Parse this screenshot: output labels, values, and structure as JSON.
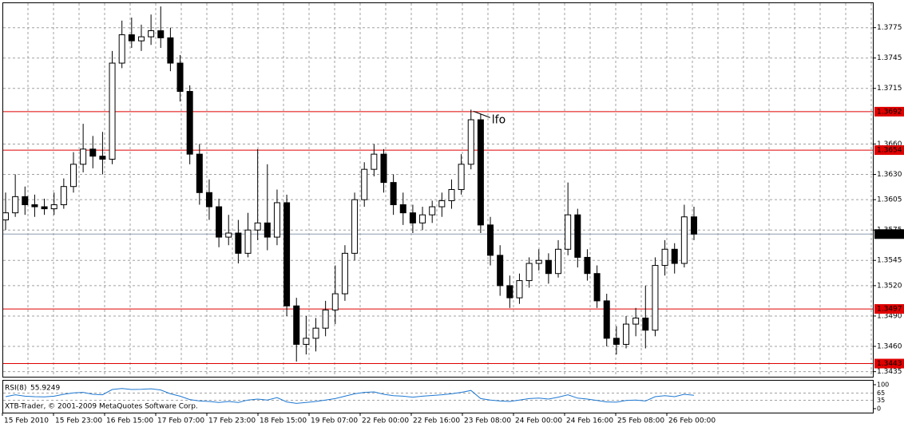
{
  "chart_data": {
    "type": "candlestick",
    "candles": [
      [
        1.3585,
        1.3612,
        1.3575,
        1.3592
      ],
      [
        1.3592,
        1.363,
        1.3588,
        1.3608
      ],
      [
        1.3608,
        1.3618,
        1.359,
        1.36
      ],
      [
        1.36,
        1.361,
        1.3588,
        1.3598
      ],
      [
        1.3598,
        1.3606,
        1.359,
        1.3596
      ],
      [
        1.3596,
        1.3612,
        1.359,
        1.36
      ],
      [
        1.36,
        1.3626,
        1.3596,
        1.3618
      ],
      [
        1.3618,
        1.3652,
        1.3612,
        1.364
      ],
      [
        1.364,
        1.368,
        1.3632,
        1.3655
      ],
      [
        1.3655,
        1.3668,
        1.3636,
        1.3648
      ],
      [
        1.3648,
        1.3672,
        1.363,
        1.3645
      ],
      [
        1.3645,
        1.3752,
        1.364,
        1.374
      ],
      [
        1.374,
        1.3782,
        1.3735,
        1.3768
      ],
      [
        1.3768,
        1.3785,
        1.3755,
        1.3762
      ],
      [
        1.3762,
        1.3778,
        1.3752,
        1.3766
      ],
      [
        1.3766,
        1.3788,
        1.3758,
        1.3772
      ],
      [
        1.3772,
        1.3796,
        1.3755,
        1.3765
      ],
      [
        1.3765,
        1.3775,
        1.3732,
        1.374
      ],
      [
        1.374,
        1.3748,
        1.3702,
        1.3712
      ],
      [
        1.3712,
        1.3718,
        1.364,
        1.365
      ],
      [
        1.365,
        1.366,
        1.36,
        1.3612
      ],
      [
        1.3612,
        1.3625,
        1.3585,
        1.3598
      ],
      [
        1.3598,
        1.3606,
        1.3558,
        1.3568
      ],
      [
        1.3568,
        1.359,
        1.356,
        1.3572
      ],
      [
        1.3572,
        1.3585,
        1.3542,
        1.3552
      ],
      [
        1.3552,
        1.3592,
        1.3548,
        1.3575
      ],
      [
        1.3575,
        1.3655,
        1.3565,
        1.3582
      ],
      [
        1.3582,
        1.364,
        1.3555,
        1.3568
      ],
      [
        1.3568,
        1.3615,
        1.356,
        1.3602
      ],
      [
        1.3602,
        1.361,
        1.349,
        1.35
      ],
      [
        1.35,
        1.3508,
        1.3445,
        1.3462
      ],
      [
        1.3462,
        1.349,
        1.3452,
        1.3468
      ],
      [
        1.3468,
        1.3488,
        1.3455,
        1.3478
      ],
      [
        1.3478,
        1.3505,
        1.347,
        1.3496
      ],
      [
        1.3496,
        1.354,
        1.3482,
        1.3512
      ],
      [
        1.3512,
        1.356,
        1.3505,
        1.3552
      ],
      [
        1.3552,
        1.3612,
        1.3545,
        1.3605
      ],
      [
        1.3605,
        1.3642,
        1.3598,
        1.3635
      ],
      [
        1.3635,
        1.366,
        1.3628,
        1.365
      ],
      [
        1.365,
        1.3655,
        1.3612,
        1.3622
      ],
      [
        1.3622,
        1.363,
        1.359,
        1.36
      ],
      [
        1.36,
        1.3612,
        1.358,
        1.3592
      ],
      [
        1.3592,
        1.36,
        1.3572,
        1.3582
      ],
      [
        1.3582,
        1.3598,
        1.3575,
        1.359
      ],
      [
        1.359,
        1.3604,
        1.3582,
        1.3598
      ],
      [
        1.3598,
        1.3612,
        1.3588,
        1.3604
      ],
      [
        1.3604,
        1.3625,
        1.3596,
        1.3615
      ],
      [
        1.3615,
        1.365,
        1.361,
        1.364
      ],
      [
        1.364,
        1.3694,
        1.3635,
        1.3684
      ],
      [
        1.3684,
        1.369,
        1.3572,
        1.358
      ],
      [
        1.358,
        1.3588,
        1.354,
        1.355
      ],
      [
        1.355,
        1.356,
        1.351,
        1.352
      ],
      [
        1.352,
        1.353,
        1.3498,
        1.3508
      ],
      [
        1.3508,
        1.3532,
        1.3502,
        1.3525
      ],
      [
        1.3525,
        1.3548,
        1.3518,
        1.3542
      ],
      [
        1.3542,
        1.3556,
        1.3535,
        1.3545
      ],
      [
        1.3545,
        1.3552,
        1.3522,
        1.3532
      ],
      [
        1.3532,
        1.3565,
        1.3528,
        1.3556
      ],
      [
        1.3556,
        1.3622,
        1.355,
        1.359
      ],
      [
        1.359,
        1.3596,
        1.3538,
        1.3548
      ],
      [
        1.3548,
        1.3556,
        1.3525,
        1.3532
      ],
      [
        1.3532,
        1.354,
        1.3498,
        1.3505
      ],
      [
        1.3505,
        1.3512,
        1.346,
        1.3468
      ],
      [
        1.3468,
        1.348,
        1.3452,
        1.3462
      ],
      [
        1.3462,
        1.349,
        1.3458,
        1.3482
      ],
      [
        1.3482,
        1.3498,
        1.347,
        1.3488
      ],
      [
        1.3488,
        1.352,
        1.3458,
        1.3476
      ],
      [
        1.3476,
        1.3548,
        1.347,
        1.354
      ],
      [
        1.354,
        1.3565,
        1.353,
        1.3556
      ],
      [
        1.3556,
        1.3562,
        1.3532,
        1.3542
      ],
      [
        1.3542,
        1.36,
        1.3538,
        1.3588
      ],
      [
        1.3588,
        1.3598,
        1.3565,
        1.3571
      ]
    ],
    "ylim": [
      1.343,
      1.38
    ],
    "yticks": [
      1.3775,
      1.3745,
      1.3715,
      {
        "value": 1.366,
        "label": "1.3660"
      },
      {
        "value": 1.363,
        "label": "1.3630"
      },
      1.3605,
      1.3575,
      1.3545,
      {
        "value": 1.352,
        "label": "1.3520"
      },
      {
        "value": 1.349,
        "label": "1.3490"
      },
      {
        "value": 1.346,
        "label": "1.3460"
      },
      1.3435
    ],
    "grid": true,
    "x_labels": [
      "15 Feb 2010",
      "15 Feb 23:00",
      "16 Feb 15:00",
      "17 Feb 07:00",
      "17 Feb 23:00",
      "18 Feb 15:00",
      "19 Feb 07:00",
      "22 Feb 00:00",
      "22 Feb 16:00",
      "23 Feb 08:00",
      "24 Feb 00:00",
      "24 Feb 16:00",
      "25 Feb 08:00",
      "26 Feb 00:00"
    ],
    "levels": [
      {
        "value": 1.3692,
        "color": "#e00000"
      },
      {
        "value": 1.3654,
        "color": "#e00000"
      },
      {
        "value": 1.3497,
        "color": "#e00000"
      },
      {
        "value": 1.3443,
        "color": "#e00000"
      }
    ],
    "current_price": 1.3571,
    "annotation": "lfo",
    "rsi": {
      "name": "RSI(8)",
      "color": "#1e78d2",
      "ylim": [
        0,
        100
      ],
      "yticks": [
        100,
        65,
        35,
        0
      ],
      "values": [
        50,
        58,
        52,
        50,
        49,
        52,
        60,
        66,
        68,
        60,
        58,
        80,
        84,
        80,
        81,
        83,
        78,
        62,
        52,
        38,
        32,
        30,
        26,
        30,
        26,
        36,
        40,
        36,
        46,
        28,
        22,
        26,
        30,
        36,
        42,
        52,
        62,
        68,
        70,
        60,
        54,
        52,
        48,
        52,
        55,
        58,
        62,
        68,
        76,
        42,
        36,
        32,
        30,
        36,
        42,
        44,
        40,
        48,
        58,
        44,
        40,
        34,
        28,
        27,
        34,
        36,
        32,
        50,
        54,
        50,
        60,
        55.9249
      ]
    },
    "copyright": "XTB-Trader, © 2001-2009 MetaQuotes Software Corp."
  }
}
